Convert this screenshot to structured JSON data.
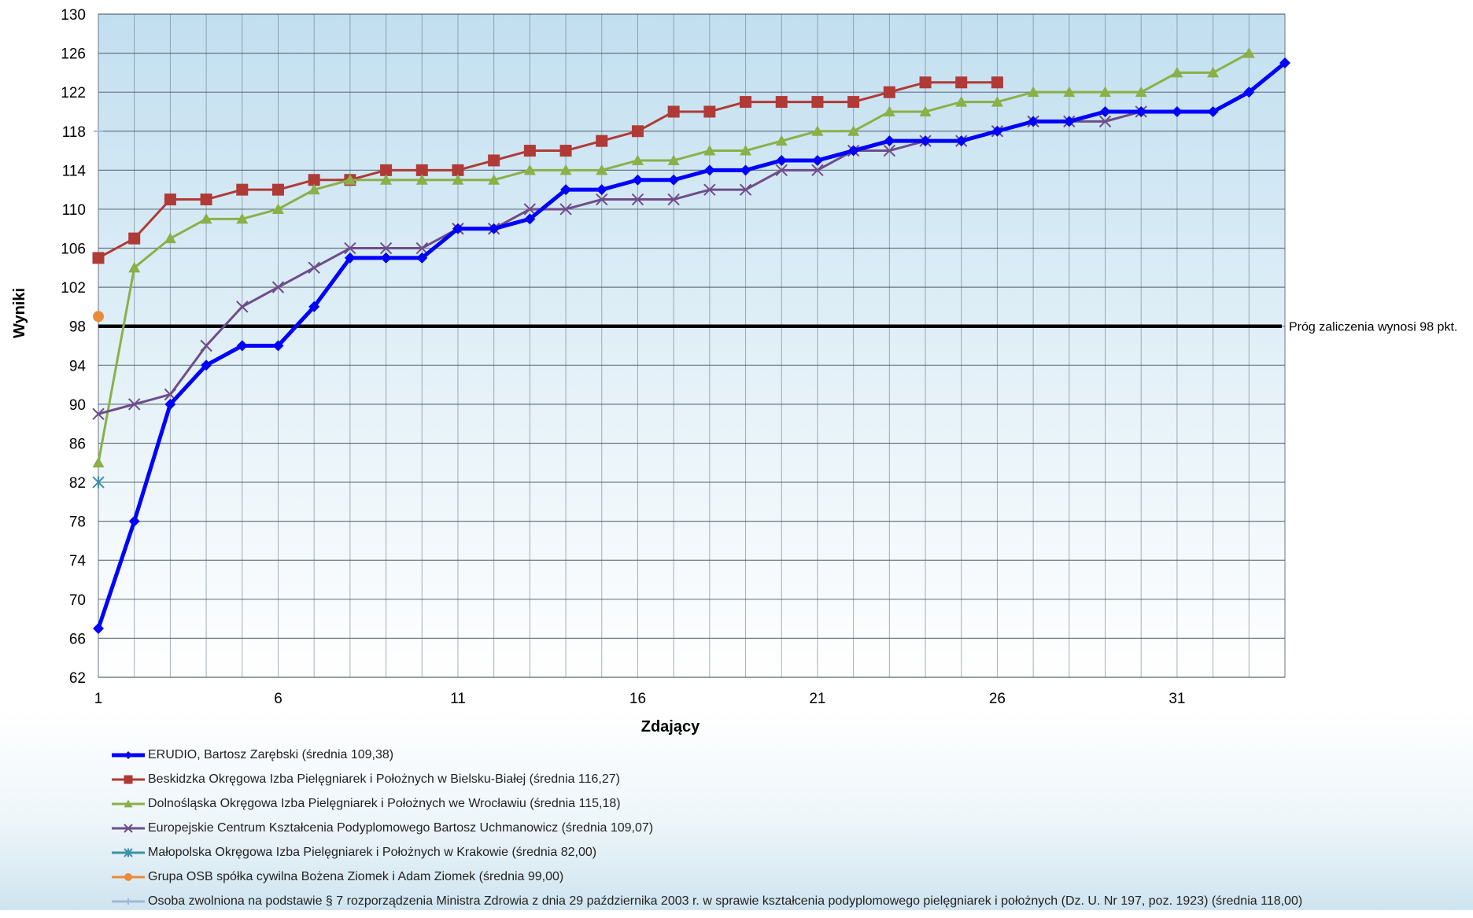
{
  "chart_data": {
    "type": "line",
    "xlabel": "Zdający",
    "ylabel": "Wyniki",
    "xlim": [
      1,
      34
    ],
    "ylim": [
      62,
      130
    ],
    "x_tick_values": [
      1,
      6,
      11,
      16,
      21,
      26,
      31
    ],
    "y_tick_values": [
      62,
      66,
      70,
      74,
      78,
      82,
      86,
      90,
      94,
      98,
      102,
      106,
      110,
      114,
      118,
      122,
      126,
      130
    ],
    "grid": true,
    "legend_position": "bottom",
    "threshold": {
      "value": 98,
      "label": "Próg zaliczenia wynosi 98 pkt.",
      "color": "#000000"
    },
    "series": [
      {
        "name": "ERUDIO, Bartosz Zarębski (średnia 109,38)",
        "color": "#0000ff",
        "marker": "diamond",
        "width": 5,
        "x": [
          1,
          2,
          3,
          4,
          5,
          6,
          7,
          8,
          9,
          10,
          11,
          12,
          13,
          14,
          15,
          16,
          17,
          18,
          19,
          20,
          21,
          22,
          23,
          24,
          25,
          26,
          27,
          28,
          29,
          30,
          31,
          32,
          33,
          34
        ],
        "values": [
          67,
          78,
          90,
          94,
          96,
          96,
          100,
          105,
          105,
          105,
          108,
          108,
          109,
          112,
          112,
          113,
          113,
          114,
          114,
          115,
          115,
          116,
          117,
          117,
          117,
          118,
          119,
          119,
          120,
          120,
          120,
          120,
          122,
          125
        ]
      },
      {
        "name": "Beskidzka Okręgowa Izba Pielęgniarek i Położnych w Bielsku-Białej (średnia 116,27)",
        "color": "#b03a36",
        "marker": "square",
        "width": 3,
        "x": [
          1,
          2,
          3,
          4,
          5,
          6,
          7,
          8,
          9,
          10,
          11,
          12,
          13,
          14,
          15,
          16,
          17,
          18,
          19,
          20,
          21,
          22,
          23,
          24,
          25,
          26
        ],
        "values": [
          105,
          107,
          111,
          111,
          112,
          112,
          113,
          113,
          114,
          114,
          114,
          115,
          116,
          116,
          117,
          118,
          120,
          120,
          121,
          121,
          121,
          121,
          122,
          123,
          123,
          123
        ]
      },
      {
        "name": "Dolnośląska Okręgowa Izba Pielęgniarek i Położnych we Wrocławiu (średnia 115,18)",
        "color": "#8ab048",
        "marker": "triangle",
        "width": 3,
        "x": [
          1,
          2,
          3,
          4,
          5,
          6,
          7,
          8,
          9,
          10,
          11,
          12,
          13,
          14,
          15,
          16,
          17,
          18,
          19,
          20,
          21,
          22,
          23,
          24,
          25,
          26,
          27,
          28,
          29,
          30,
          31,
          32,
          33
        ],
        "values": [
          84,
          104,
          107,
          109,
          109,
          110,
          112,
          113,
          113,
          113,
          113,
          113,
          114,
          114,
          114,
          115,
          115,
          116,
          116,
          117,
          118,
          118,
          120,
          120,
          121,
          121,
          122,
          122,
          122,
          122,
          124,
          124,
          126
        ]
      },
      {
        "name": "Europejskie Centrum Kształcenia Podyplomowego Bartosz Uchmanowicz (średnia 109,07)",
        "color": "#6e4d8a",
        "marker": "x",
        "width": 3,
        "x": [
          1,
          2,
          3,
          4,
          5,
          6,
          7,
          8,
          9,
          10,
          11,
          12,
          13,
          14,
          15,
          16,
          17,
          18,
          19,
          20,
          21,
          22,
          23,
          24,
          25,
          26,
          27,
          28,
          29,
          30
        ],
        "values": [
          89,
          90,
          91,
          96,
          100,
          102,
          104,
          106,
          106,
          106,
          108,
          108,
          110,
          110,
          111,
          111,
          111,
          112,
          112,
          114,
          114,
          116,
          116,
          117,
          117,
          118,
          119,
          119,
          119,
          120
        ]
      },
      {
        "name": "Małopolska Okręgowa Izba Pielęgniarek i Położnych w Krakowie (średnia 82,00)",
        "color": "#3f8fa6",
        "marker": "star",
        "width": 3,
        "x": [
          1
        ],
        "values": [
          82
        ]
      },
      {
        "name": "Grupa OSB spółka cywilna Bożena Ziomek i Adam Ziomek (średnia 99,00)",
        "color": "#e98b3a",
        "marker": "circle",
        "width": 3,
        "x": [
          1
        ],
        "values": [
          99
        ]
      },
      {
        "name": "Osoba zwolniona na podstawie § 7 rozporządzenia Ministra Zdrowia z dnia 29 października 2003 r. w sprawie kształcenia podyplomowego pielęgniarek i położnych (Dz. U. Nr 197, poz. 1923) (średnia 118,00)",
        "color": "#9fb8d8",
        "marker": "plus",
        "width": 3,
        "x": [
          1
        ],
        "values": [
          118
        ]
      }
    ]
  }
}
